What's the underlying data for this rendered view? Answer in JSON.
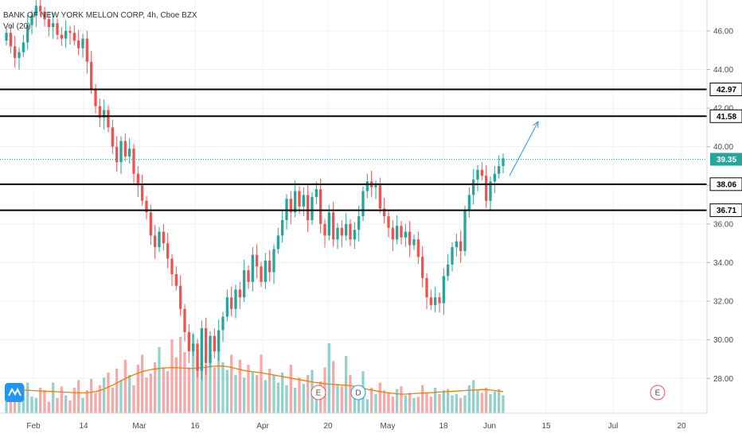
{
  "legend": {
    "title": "BANK OF NEW YORK MELLON CORP, 4h, Cboe BZX",
    "volume_label": "Vol (20)"
  },
  "chart_data": {
    "type": "candlestick",
    "symbol_title": "BANK OF NEW YORK MELLON CORP, 4h, Cboe BZX",
    "interval": "4h",
    "ylim": [
      26.2,
      47.6
    ],
    "y_ticks": [
      "28.00",
      "30.00",
      "32.00",
      "34.00",
      "36.00",
      "38.00",
      "40.00",
      "42.00",
      "44.00",
      "46.00"
    ],
    "x_ticks": [
      "Feb",
      "14",
      "Mar",
      "16",
      "Apr",
      "20",
      "May",
      "18",
      "Jun",
      "15",
      "Jul",
      "20"
    ],
    "horizontal_levels": [
      {
        "value": 42.97,
        "label": "42.97"
      },
      {
        "value": 41.58,
        "label": "41.58"
      },
      {
        "value": 38.06,
        "label": "38.06"
      },
      {
        "value": 36.71,
        "label": "36.71"
      }
    ],
    "current_price": {
      "value": 39.35,
      "label": "39.35",
      "color": "#26a69a"
    },
    "colors": {
      "up": "#26a69a",
      "down": "#ef5350",
      "ma": "#f57c00",
      "arrow": "#2196f3",
      "level": "#000000"
    },
    "closes": [
      45.9,
      45.2,
      44.6,
      44.9,
      45.4,
      46.3,
      46.8,
      47.3,
      47.0,
      46.6,
      46.2,
      46.4,
      45.8,
      45.6,
      46.0,
      45.9,
      45.5,
      45.1,
      45.6,
      44.4,
      43.0,
      42.1,
      41.5,
      41.9,
      41.0,
      40.0,
      39.2,
      40.3,
      39.5,
      39.9,
      38.6,
      38.0,
      37.2,
      36.6,
      35.4,
      34.8,
      35.6,
      35.0,
      34.2,
      33.4,
      32.8,
      31.6,
      30.4,
      29.4,
      29.8,
      28.4,
      30.6,
      28.8,
      30.2,
      29.4,
      30.5,
      31.2,
      32.2,
      31.6,
      32.6,
      32.2,
      33.6,
      33.0,
      34.4,
      33.8,
      33.0,
      34.1,
      33.5,
      34.7,
      35.4,
      36.2,
      37.3,
      36.6,
      37.7,
      36.9,
      37.5,
      36.2,
      37.4,
      37.8,
      36.0,
      35.4,
      36.6,
      35.2,
      35.8,
      35.4,
      36.0,
      35.2,
      35.7,
      36.4,
      37.7,
      38.2,
      37.9,
      38.0,
      36.8,
      36.4,
      35.8,
      35.2,
      35.9,
      35.3,
      35.6,
      34.9,
      35.2,
      34.3,
      33.2,
      32.2,
      31.8,
      32.2,
      31.9,
      33.3,
      33.9,
      34.8,
      35.1,
      34.6,
      36.7,
      37.5,
      38.3,
      38.8,
      38.5,
      37.2,
      38.2,
      38.6,
      39.0,
      39.4
    ],
    "volume": [
      0.13,
      0.22,
      0.15,
      0.11,
      0.21,
      0.24,
      0.13,
      0.12,
      0.2,
      0.18,
      0.09,
      0.24,
      0.12,
      0.21,
      0.14,
      0.1,
      0.2,
      0.26,
      0.12,
      0.18,
      0.27,
      0.16,
      0.22,
      0.28,
      0.32,
      0.2,
      0.35,
      0.26,
      0.42,
      0.3,
      0.22,
      0.38,
      0.46,
      0.28,
      0.31,
      0.4,
      0.52,
      0.36,
      0.33,
      0.58,
      0.44,
      0.6,
      0.48,
      0.36,
      0.62,
      0.44,
      0.52,
      0.38,
      0.48,
      0.36,
      0.54,
      0.4,
      0.34,
      0.46,
      0.3,
      0.42,
      0.28,
      0.38,
      0.32,
      0.3,
      0.46,
      0.26,
      0.35,
      0.3,
      0.24,
      0.32,
      0.22,
      0.38,
      0.2,
      0.28,
      0.23,
      0.3,
      0.34,
      0.2,
      0.25,
      0.36,
      0.55,
      0.41,
      0.23,
      0.21,
      0.45,
      0.3,
      0.18,
      0.12,
      0.33,
      0.11,
      0.2,
      0.15,
      0.24,
      0.18,
      0.16,
      0.13,
      0.19,
      0.21,
      0.14,
      0.16,
      0.12,
      0.13,
      0.22,
      0.16,
      0.13,
      0.2,
      0.15,
      0.18,
      0.19,
      0.14,
      0.15,
      0.12,
      0.14,
      0.22,
      0.26,
      0.18,
      0.16,
      0.2,
      0.15,
      0.17,
      0.19,
      0.14
    ],
    "ma_volume": [
      0.19,
      0.188,
      0.186,
      0.184,
      0.182,
      0.18,
      0.178,
      0.176,
      0.175,
      0.173,
      0.172,
      0.17,
      0.168,
      0.166,
      0.165,
      0.163,
      0.162,
      0.16,
      0.16,
      0.162,
      0.165,
      0.17,
      0.178,
      0.19,
      0.205,
      0.22,
      0.238,
      0.255,
      0.272,
      0.288,
      0.302,
      0.315,
      0.326,
      0.335,
      0.342,
      0.348,
      0.352,
      0.355,
      0.357,
      0.358,
      0.357,
      0.356,
      0.354,
      0.352,
      0.352,
      0.354,
      0.358,
      0.362,
      0.366,
      0.37,
      0.372,
      0.37,
      0.366,
      0.36,
      0.352,
      0.344,
      0.336,
      0.33,
      0.326,
      0.322,
      0.318,
      0.312,
      0.306,
      0.3,
      0.294,
      0.288,
      0.282,
      0.276,
      0.27,
      0.264,
      0.258,
      0.252,
      0.246,
      0.24,
      0.236,
      0.232,
      0.228,
      0.226,
      0.224,
      0.222,
      0.22,
      0.216,
      0.21,
      0.203,
      0.195,
      0.188,
      0.182,
      0.176,
      0.17,
      0.165,
      0.16,
      0.156,
      0.152,
      0.15,
      0.15,
      0.152,
      0.154,
      0.156,
      0.158,
      0.16,
      0.162,
      0.164,
      0.166,
      0.168,
      0.17,
      0.172,
      0.174,
      0.176,
      0.178,
      0.18,
      0.182,
      0.184,
      0.186,
      0.185,
      0.182,
      0.178,
      0.174,
      0.17
    ],
    "events": [
      {
        "type": "logo",
        "label": ""
      },
      {
        "type": "earnings",
        "label": "E"
      },
      {
        "type": "dividend",
        "label": "D"
      },
      {
        "type": "earnings",
        "label": "E"
      }
    ],
    "projection_arrow": {
      "from": {
        "x": "Jun",
        "y": 38.5
      },
      "to": {
        "x": "15",
        "y": 41.3
      }
    }
  }
}
